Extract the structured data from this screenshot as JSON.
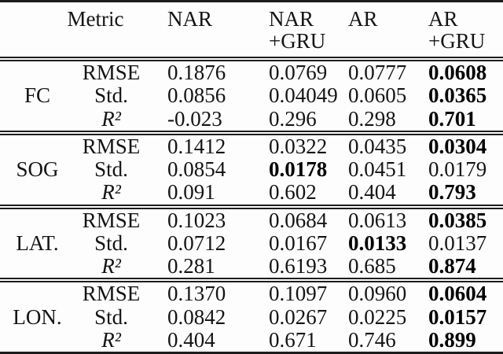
{
  "table": {
    "header": {
      "metric_label": "Metric",
      "columns": [
        {
          "line1": "NAR",
          "line2": ""
        },
        {
          "line1": "NAR",
          "line2": "+GRU"
        },
        {
          "line1": "AR",
          "line2": ""
        },
        {
          "line1": "AR",
          "line2": "+GRU"
        }
      ]
    },
    "groups": [
      {
        "name": "FC",
        "rows": [
          {
            "metric": "RMSE",
            "math": false,
            "values": [
              "0.1876",
              "0.0769",
              "0.0777",
              "0.0608"
            ],
            "best_col": 3
          },
          {
            "metric": "Std.",
            "math": false,
            "values": [
              "0.0856",
              "0.04049",
              "0.0605",
              "0.0365"
            ],
            "best_col": 3
          },
          {
            "metric": "R²",
            "math": true,
            "values": [
              "-0.023",
              "0.296",
              "0.298",
              "0.701"
            ],
            "best_col": 3
          }
        ]
      },
      {
        "name": "SOG",
        "rows": [
          {
            "metric": "RMSE",
            "math": false,
            "values": [
              "0.1412",
              "0.0322",
              "0.0435",
              "0.0304"
            ],
            "best_col": 3
          },
          {
            "metric": "Std.",
            "math": false,
            "values": [
              "0.0854",
              "0.0178",
              "0.0451",
              "0.0179"
            ],
            "best_col": 1
          },
          {
            "metric": "R²",
            "math": true,
            "values": [
              "0.091",
              "0.602",
              "0.404",
              "0.793"
            ],
            "best_col": 3
          }
        ]
      },
      {
        "name": "LAT.",
        "rows": [
          {
            "metric": "RMSE",
            "math": false,
            "values": [
              "0.1023",
              "0.0684",
              "0.0613",
              "0.0385"
            ],
            "best_col": 3
          },
          {
            "metric": "Std.",
            "math": false,
            "values": [
              "0.0712",
              "0.0167",
              "0.0133",
              "0.0137"
            ],
            "best_col": 2
          },
          {
            "metric": "R²",
            "math": true,
            "values": [
              "0.281",
              "0.6193",
              "0.685",
              "0.874"
            ],
            "best_col": 3
          }
        ]
      },
      {
        "name": "LON.",
        "rows": [
          {
            "metric": "RMSE",
            "math": false,
            "values": [
              "0.1370",
              "0.1097",
              "0.0960",
              "0.0604"
            ],
            "best_col": 3
          },
          {
            "metric": "Std.",
            "math": false,
            "values": [
              "0.0842",
              "0.0267",
              "0.0225",
              "0.0157"
            ],
            "best_col": 3
          },
          {
            "metric": "R²",
            "math": true,
            "values": [
              "0.404",
              "0.671",
              "0.746",
              "0.899"
            ],
            "best_col": 3
          }
        ]
      }
    ]
  },
  "colors": {
    "text": "#141414",
    "rule": "#1c1c1c",
    "background": "#fdfdfd",
    "best_value": "#000000"
  }
}
